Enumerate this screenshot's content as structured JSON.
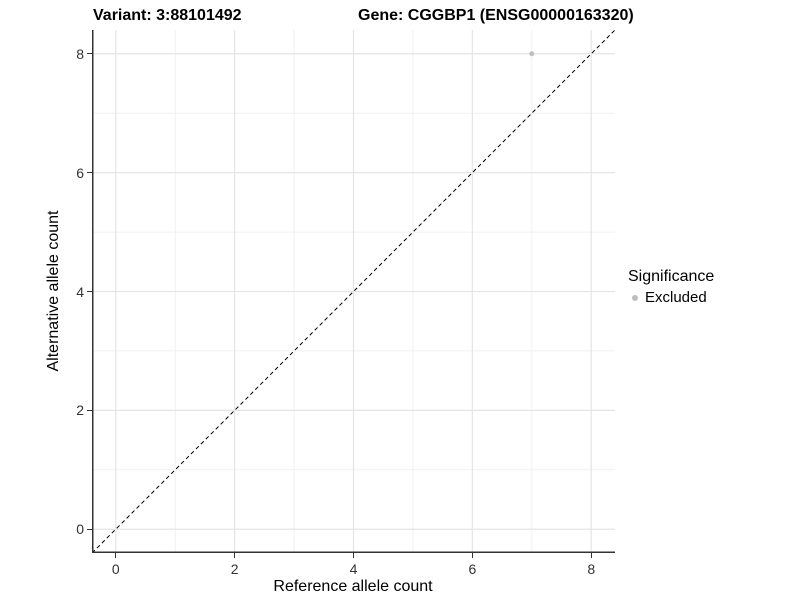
{
  "title": {
    "variant": "Variant: 3:88101492",
    "gene": "Gene: CGGBP1 (ENSG00000163320)"
  },
  "legend": {
    "title": "Significance",
    "items": [
      {
        "label": "Excluded",
        "color": "#bebebe"
      }
    ]
  },
  "chart_data": {
    "type": "scatter",
    "title": "Variant: 3:88101492   Gene: CGGBP1 (ENSG00000163320)",
    "xlabel": "Reference allele count",
    "ylabel": "Alternative allele count",
    "xlim": [
      -0.4,
      8.4
    ],
    "ylim": [
      -0.4,
      8.4
    ],
    "x_ticks": [
      0,
      2,
      4,
      6,
      8
    ],
    "y_ticks": [
      0,
      2,
      4,
      6,
      8
    ],
    "x_minor_ticks": [
      1,
      3,
      5,
      7
    ],
    "y_minor_ticks": [
      1,
      3,
      5,
      7
    ],
    "grid": true,
    "legend_position": "right",
    "series": [
      {
        "name": "Excluded",
        "color": "#bebebe",
        "point_radius": 2.5,
        "points": [
          {
            "x": 7,
            "y": 8
          }
        ]
      }
    ],
    "reference_line": {
      "type": "identity",
      "equation": "y = x",
      "style": "dashed",
      "color": "#000000"
    }
  },
  "colors": {
    "background": "#ffffff",
    "axis_line": "#333333",
    "tick_label": "#333333",
    "grid_major": "#e5e5e5",
    "grid_minor": "#f1f1f1",
    "point": "#bebebe",
    "text": "#000000"
  }
}
